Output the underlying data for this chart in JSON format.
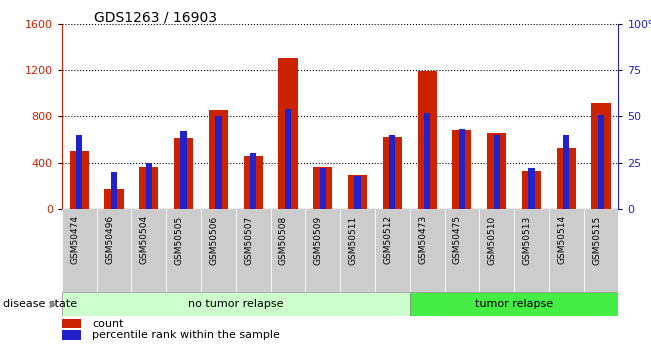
{
  "title": "GDS1263 / 16903",
  "samples": [
    "GSM50474",
    "GSM50496",
    "GSM50504",
    "GSM50505",
    "GSM50506",
    "GSM50507",
    "GSM50508",
    "GSM50509",
    "GSM50511",
    "GSM50512",
    "GSM50473",
    "GSM50475",
    "GSM50510",
    "GSM50513",
    "GSM50514",
    "GSM50515"
  ],
  "counts": [
    500,
    175,
    360,
    610,
    860,
    460,
    1310,
    360,
    290,
    620,
    1190,
    680,
    660,
    330,
    530,
    920
  ],
  "percentiles": [
    40,
    20,
    25,
    42,
    50,
    30,
    54,
    22,
    18,
    40,
    52,
    43,
    40,
    22,
    40,
    51
  ],
  "no_tumor_count": 10,
  "tumor_count": 6,
  "ylim_left": [
    0,
    1600
  ],
  "ylim_right": [
    0,
    100
  ],
  "yticks_left": [
    0,
    400,
    800,
    1200,
    1600
  ],
  "yticks_right": [
    0,
    25,
    50,
    75,
    100
  ],
  "bar_color_count": "#cc2200",
  "bar_color_pct": "#2222cc",
  "bg_color_no_tumor": "#ccffcc",
  "bg_color_tumor": "#44ee44",
  "bg_color_xtick": "#cccccc",
  "title_fontsize": 10,
  "legend_count": "count",
  "legend_pct": "percentile rank within the sample",
  "disease_state_label": "disease state",
  "no_tumor_label": "no tumor relapse",
  "tumor_label": "tumor relapse"
}
